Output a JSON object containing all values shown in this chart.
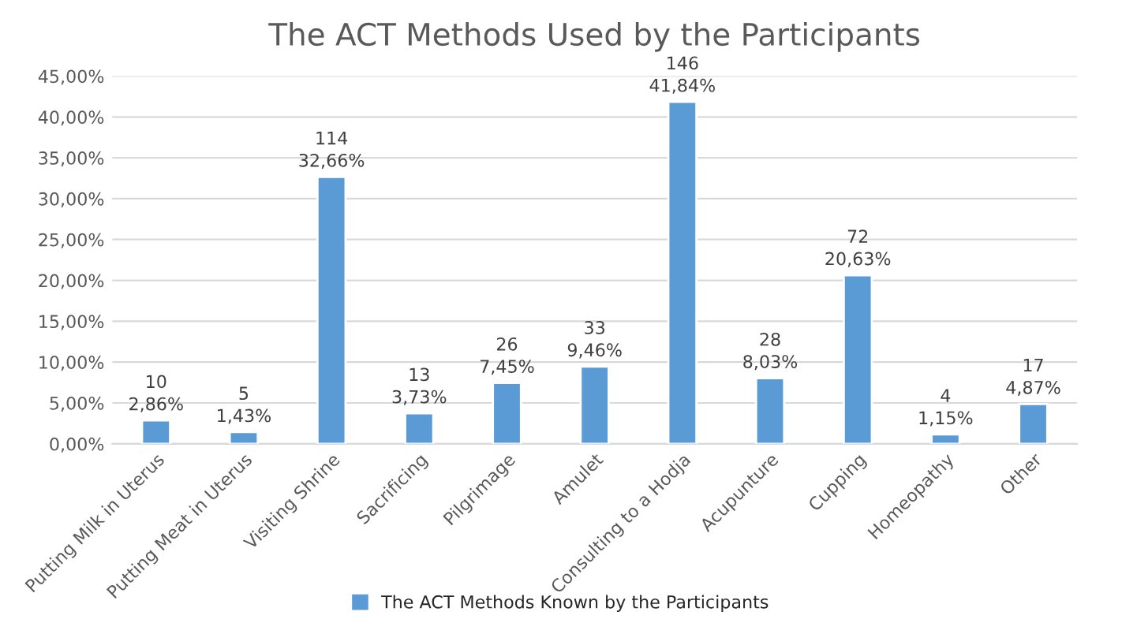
{
  "chart_data": {
    "type": "bar",
    "title": "The ACT Methods Used by the Participants",
    "categories": [
      "Putting Milk in Uterus",
      "Putting Meat in Uterus",
      "Visiting Shrine",
      "Sacrificing",
      "Pilgrimage",
      "Amulet",
      "Consulting to a Hodja",
      "Acupunture",
      "Cupping",
      "Homeopathy",
      "Other"
    ],
    "series": [
      {
        "name": "The ACT Methods Known by the Participants",
        "color": "#5b9bd5",
        "values": [
          2.86,
          1.43,
          32.66,
          3.73,
          7.45,
          9.46,
          41.84,
          8.03,
          20.63,
          1.15,
          4.87
        ],
        "value_labels": [
          "10\n2,86%",
          "5\n1,43%",
          "114\n32,66%",
          "13\n3,73%",
          "26\n7,45%",
          "33\n9,46%",
          "146\n41,84%",
          "28\n8,03%",
          "72\n20,63%",
          "4\n1,15%",
          "17\n4,87%"
        ]
      }
    ],
    "ylim": [
      0,
      45
    ],
    "yticks": [
      {
        "value": 0,
        "label": "0,00%"
      },
      {
        "value": 5,
        "label": "5,00%"
      },
      {
        "value": 10,
        "label": "10,00%"
      },
      {
        "value": 15,
        "label": "15,00%"
      },
      {
        "value": 20,
        "label": "20,00%"
      },
      {
        "value": 25,
        "label": "25,00%"
      },
      {
        "value": 30,
        "label": "30,00%"
      },
      {
        "value": 35,
        "label": "35,00%"
      },
      {
        "value": 40,
        "label": "40,00%"
      },
      {
        "value": 45,
        "label": "45,00%"
      }
    ],
    "grid": "y",
    "legend": "bottom"
  }
}
